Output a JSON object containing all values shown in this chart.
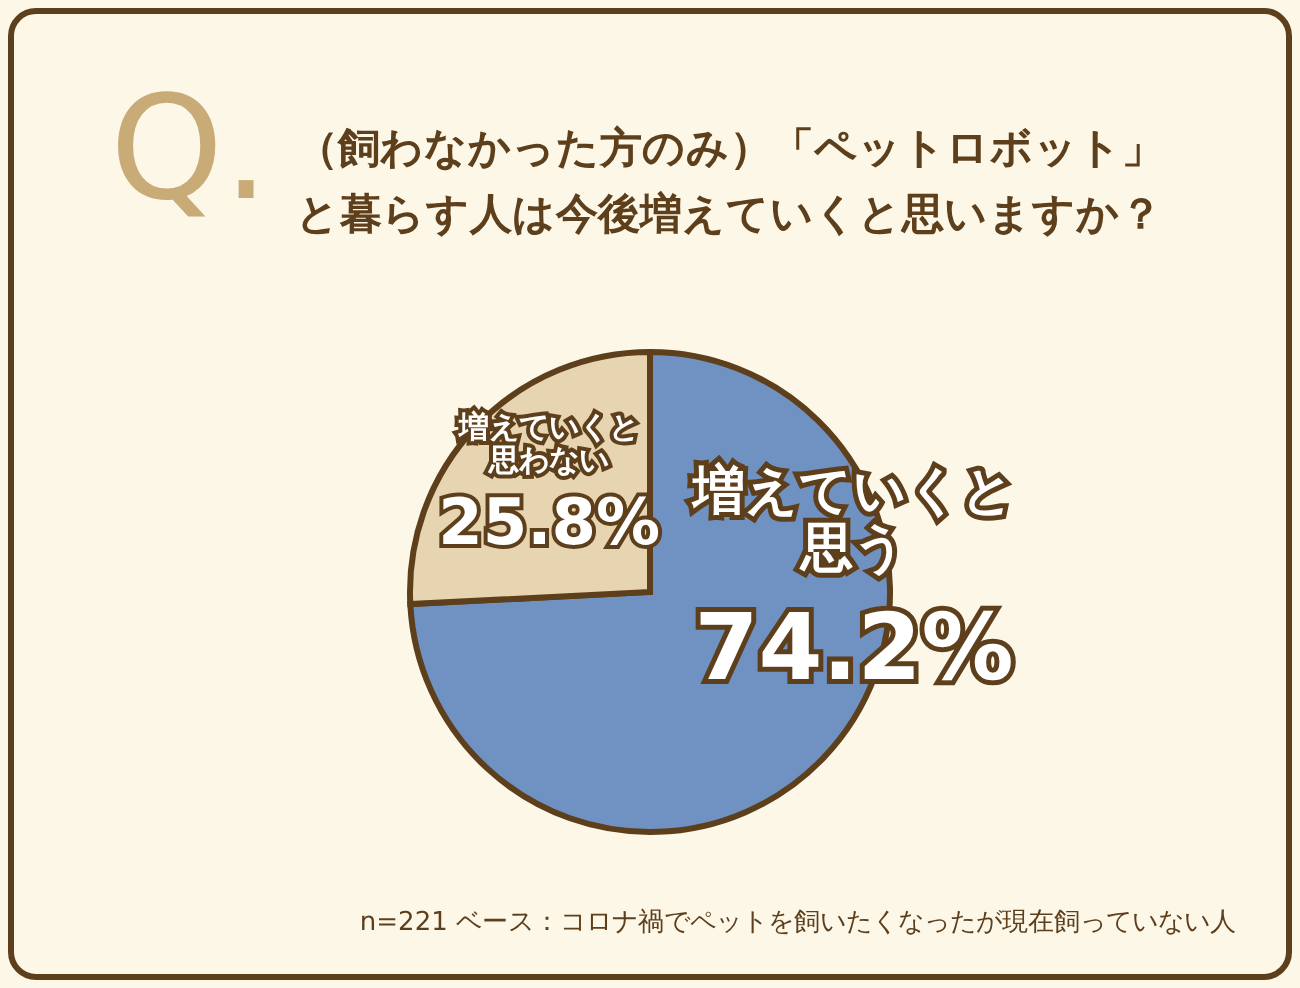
{
  "chart_data": {
    "type": "pie",
    "title": "（飼わなかった方のみ）「ペットロボット」と暮らす人は今後増えていくと思いますか？",
    "categories": [
      "増えていくと思う",
      "増えていくと思わない"
    ],
    "values": [
      74.2,
      25.8
    ],
    "colors": [
      "#7092c2",
      "#e6d5b0"
    ],
    "value_labels": [
      "74.2%",
      "25.8%"
    ],
    "legend": false,
    "annotations": [
      "Q.",
      "n=221 ベース：コロナ禍でペットを飼いたくなったが現在飼っていない人"
    ]
  }
}
